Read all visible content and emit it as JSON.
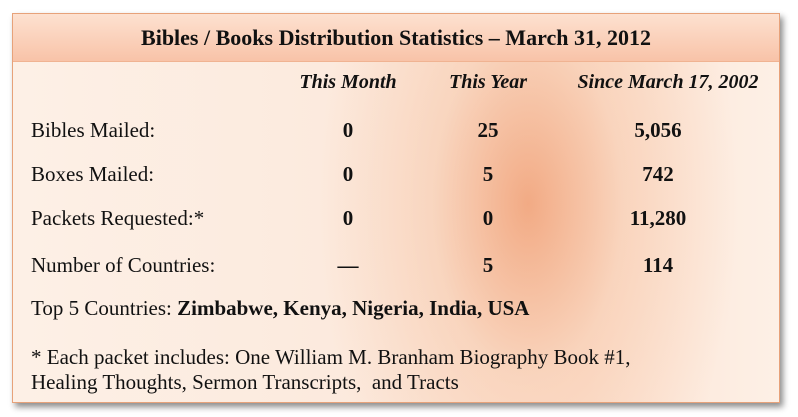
{
  "title": "Bibles / Books Distribution Statistics – March 31, 2012",
  "columns": [
    "This Month",
    "This Year",
    "Since March 17, 2002"
  ],
  "rows": [
    {
      "label": "Bibles Mailed:",
      "this_month": "0",
      "this_year": "25",
      "since": "5,056"
    },
    {
      "label": "Boxes Mailed:",
      "this_month": "0",
      "this_year": "5",
      "since": "742"
    },
    {
      "label": "Packets Requested:*",
      "this_month": "0",
      "this_year": "0",
      "since": "11,280"
    },
    {
      "label": "Number of Countries:",
      "this_month": "—",
      "this_year": "5",
      "since": "114"
    }
  ],
  "top_countries": {
    "label": "Top 5 Countries: ",
    "value": "Zimbabwe, Kenya, Nigeria, India, USA"
  },
  "note": {
    "line1": "* Each packet includes: One William M. Branham Biography Book #1,",
    "line2": "Healing Thoughts, Sermon Transcripts,  and Tracts"
  }
}
